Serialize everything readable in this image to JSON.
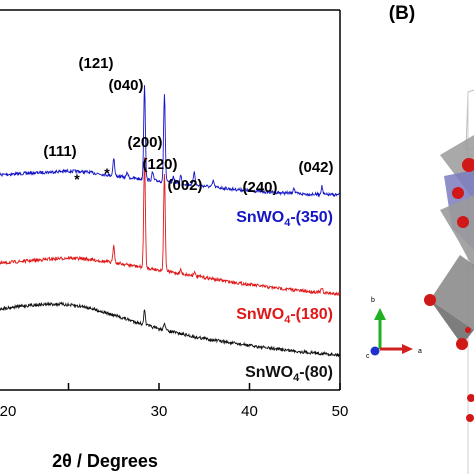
{
  "panel_label": "(B)",
  "chart_data": {
    "type": "line",
    "xlabel": "2θ / Degrees",
    "xlim": [
      10,
      50
    ],
    "xticks": [
      "20",
      "30",
      "40",
      "50"
    ],
    "grid": false,
    "series": [
      {
        "name": "SnWO4-(350)",
        "label_main": "SnWO",
        "label_sub": "4",
        "label_tail": "-(350)",
        "color": "#1515c8",
        "baseline": [
          [
            10,
            176
          ],
          [
            14,
            174
          ],
          [
            18,
            172
          ],
          [
            20,
            171
          ],
          [
            22,
            172
          ],
          [
            26,
            177
          ],
          [
            30,
            181
          ],
          [
            34,
            185
          ],
          [
            38,
            189
          ],
          [
            42,
            192
          ],
          [
            46,
            194
          ],
          [
            50,
            195
          ]
        ],
        "peaks": [
          [
            25.0,
            18
          ],
          [
            26.5,
            5
          ],
          [
            28.4,
            95
          ],
          [
            29.3,
            8
          ],
          [
            30.6,
            88
          ],
          [
            31.6,
            6
          ],
          [
            32.4,
            8
          ],
          [
            33.9,
            14
          ],
          [
            36.0,
            6
          ],
          [
            44.9,
            6
          ],
          [
            48.0,
            8
          ]
        ]
      },
      {
        "name": "SnWO4-(180)",
        "label_main": "SnWO",
        "label_sub": "4",
        "label_tail": "-(180)",
        "color": "#e01818",
        "baseline": [
          [
            10,
            266
          ],
          [
            14,
            262
          ],
          [
            18,
            259
          ],
          [
            20,
            258
          ],
          [
            22,
            259
          ],
          [
            26,
            264
          ],
          [
            30,
            270
          ],
          [
            34,
            276
          ],
          [
            38,
            282
          ],
          [
            42,
            287
          ],
          [
            46,
            291
          ],
          [
            50,
            294
          ]
        ],
        "peaks": [
          [
            25.0,
            18
          ],
          [
            28.4,
            110
          ],
          [
            30.6,
            98
          ],
          [
            32.4,
            4
          ],
          [
            33.9,
            4
          ],
          [
            48.0,
            4
          ]
        ]
      },
      {
        "name": "SnWO4-(80)",
        "label_main": "SnWO",
        "label_sub": "4",
        "label_tail": "-(80)",
        "color": "#111111",
        "baseline": [
          [
            10,
            312
          ],
          [
            13,
            308
          ],
          [
            16,
            305
          ],
          [
            19,
            304
          ],
          [
            22,
            307
          ],
          [
            26,
            318
          ],
          [
            30,
            329
          ],
          [
            34,
            337
          ],
          [
            38,
            343
          ],
          [
            42,
            348
          ],
          [
            46,
            352
          ],
          [
            50,
            355
          ]
        ],
        "peaks": [
          [
            28.4,
            14
          ],
          [
            30.6,
            8
          ]
        ]
      }
    ],
    "annotations": [
      {
        "text": "(121)",
        "x": 28.4
      },
      {
        "text": "(040)",
        "x": 30.6
      },
      {
        "text": "(111)",
        "x": 25.0
      },
      {
        "text": "(200)",
        "x": 33.0
      },
      {
        "text": "(120)",
        "x": 34.0
      },
      {
        "text": "(002)",
        "x": 36.0
      },
      {
        "text": "(240)",
        "x": 45.0
      },
      {
        "text": "(042)",
        "x": 48.0
      }
    ],
    "markers": [
      {
        "text": "*",
        "x": 26.5
      },
      {
        "text": "*",
        "x": 29.3
      }
    ]
  },
  "crystal": {
    "axis_labels": {
      "b": "b",
      "c": "c",
      "a": "a"
    },
    "colors": {
      "oxygen": "#d01818",
      "polyhedron": "#8c8c8c",
      "accent": "#7a7ab0",
      "x_axis": "#d02020",
      "y_axis": "#22b022",
      "z_axis": "#2030d0"
    }
  }
}
